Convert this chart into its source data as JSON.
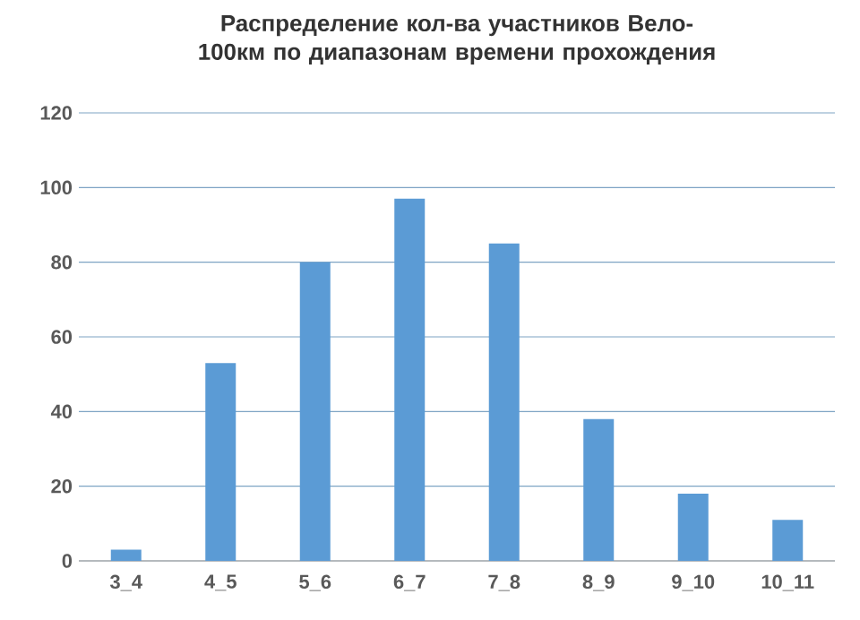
{
  "chart_data": {
    "type": "bar",
    "title": "Распределение кол-ва участников Вело-100км по диапазонам времени прохождения",
    "categories": [
      "3_4",
      "4_5",
      "5_6",
      "6_7",
      "7_8",
      "8_9",
      "9_10",
      "10_11"
    ],
    "values": [
      3,
      53,
      80,
      97,
      85,
      38,
      18,
      11
    ],
    "color": "#5b9bd5",
    "ylim": [
      0,
      120
    ],
    "yticks": [
      0,
      20,
      40,
      60,
      80,
      100,
      120
    ],
    "grid": "y"
  }
}
